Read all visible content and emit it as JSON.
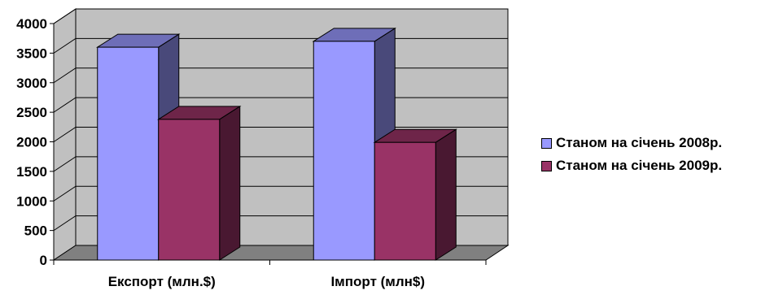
{
  "chart_data": {
    "type": "bar",
    "style": "3d-clustered-column",
    "categories": [
      "Експорт (млн.$)",
      "Імпорт (млн$)"
    ],
    "series": [
      {
        "name": "Станом на січень 2008р.",
        "values": [
          3600,
          3700
        ],
        "color": "#9999ff"
      },
      {
        "name": "Станом на січень 2009р.",
        "values": [
          2380,
          1990
        ],
        "color": "#993366"
      }
    ],
    "ylim": [
      0,
      4000
    ],
    "yticks": [
      "0",
      "500",
      "1000",
      "1500",
      "2000",
      "2500",
      "3000",
      "3500",
      "4000"
    ],
    "grid": true,
    "wall_color": "#c0c0c0",
    "floor_color": "#808080",
    "legend_position": "right"
  }
}
